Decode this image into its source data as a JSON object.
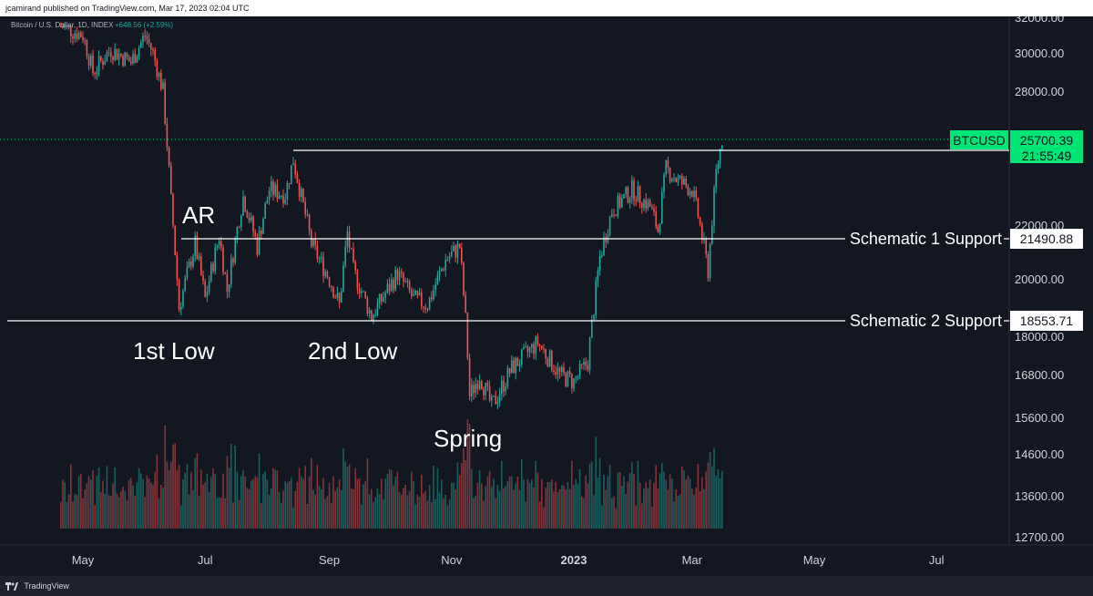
{
  "header": {
    "text": "jcamirand published on TradingView.com, Mar 17, 2023 02:04 UTC"
  },
  "footer": {
    "brand": "TradingView"
  },
  "legend": {
    "symbol": "Bitcoin / U.S. Dollar, 1D, INDEX",
    "change": "+648.56 (+2.59%)"
  },
  "colors": {
    "up": "#26a69a",
    "down": "#ef5350",
    "background": "#131722",
    "accent": "#00e676"
  },
  "chart_data": {
    "type": "candlestick",
    "title": "",
    "y_ticks": [
      32000,
      30000,
      28000,
      22000,
      20000,
      18000,
      16800,
      15600,
      14600,
      13600,
      12700
    ],
    "x_ticks": [
      "May",
      "Jul",
      "Sep",
      "Nov",
      "2023",
      "Mar",
      "May",
      "Jul"
    ],
    "price_line": {
      "label": "BTCUSD",
      "value": "25700.39",
      "countdown": "21:55:49"
    },
    "levels": [
      {
        "name": "",
        "value": 25179.4,
        "value_label": "25179.40"
      },
      {
        "name": "Schematic 1 Support",
        "value": 21490.88,
        "value_label": "21490.88"
      },
      {
        "name": "Schematic 2 Support",
        "value": 18553.71,
        "value_label": "18553.71"
      }
    ],
    "annotations": [
      "AR",
      "1st Low",
      "2nd Low",
      "Spring"
    ],
    "anchors": [
      {
        "date": "2022-04-20",
        "close": 31500
      },
      {
        "date": "2022-05-01",
        "close": 31000
      },
      {
        "date": "2022-05-06",
        "close": 29000
      },
      {
        "date": "2022-05-15",
        "close": 30200
      },
      {
        "date": "2022-05-25",
        "close": 29500
      },
      {
        "date": "2022-06-01",
        "close": 31000
      },
      {
        "date": "2022-06-05",
        "close": 30000
      },
      {
        "date": "2022-06-10",
        "close": 28000
      },
      {
        "date": "2022-06-14",
        "close": 23000
      },
      {
        "date": "2022-06-18",
        "close": 19000
      },
      {
        "date": "2022-06-26",
        "close": 21300
      },
      {
        "date": "2022-07-01",
        "close": 19300
      },
      {
        "date": "2022-07-08",
        "close": 21600
      },
      {
        "date": "2022-07-12",
        "close": 19600
      },
      {
        "date": "2022-07-20",
        "close": 23200
      },
      {
        "date": "2022-07-27",
        "close": 21200
      },
      {
        "date": "2022-08-02",
        "close": 23500
      },
      {
        "date": "2022-08-10",
        "close": 23300
      },
      {
        "date": "2022-08-14",
        "close": 24800
      },
      {
        "date": "2022-08-18",
        "close": 23200
      },
      {
        "date": "2022-08-23",
        "close": 21300
      },
      {
        "date": "2022-09-01",
        "close": 20000
      },
      {
        "date": "2022-09-06",
        "close": 19100
      },
      {
        "date": "2022-09-10",
        "close": 21700
      },
      {
        "date": "2022-09-13",
        "close": 20300
      },
      {
        "date": "2022-09-22",
        "close": 18700
      },
      {
        "date": "2022-10-05",
        "close": 20200
      },
      {
        "date": "2022-10-13",
        "close": 19300
      },
      {
        "date": "2022-10-20",
        "close": 19100
      },
      {
        "date": "2022-10-29",
        "close": 20700
      },
      {
        "date": "2022-11-05",
        "close": 21200
      },
      {
        "date": "2022-11-08",
        "close": 18600
      },
      {
        "date": "2022-11-10",
        "close": 16200
      },
      {
        "date": "2022-11-15",
        "close": 16800
      },
      {
        "date": "2022-11-21",
        "close": 15900
      },
      {
        "date": "2022-12-01",
        "close": 17000
      },
      {
        "date": "2022-12-14",
        "close": 17800
      },
      {
        "date": "2022-12-25",
        "close": 16800
      },
      {
        "date": "2023-01-01",
        "close": 16600
      },
      {
        "date": "2023-01-08",
        "close": 17200
      },
      {
        "date": "2023-01-14",
        "close": 20800
      },
      {
        "date": "2023-01-20",
        "close": 22600
      },
      {
        "date": "2023-01-30",
        "close": 23500
      },
      {
        "date": "2023-02-08",
        "close": 22800
      },
      {
        "date": "2023-02-12",
        "close": 21800
      },
      {
        "date": "2023-02-16",
        "close": 24400
      },
      {
        "date": "2023-02-22",
        "close": 23900
      },
      {
        "date": "2023-03-01",
        "close": 23500
      },
      {
        "date": "2023-03-04",
        "close": 22400
      },
      {
        "date": "2023-03-09",
        "close": 20300
      },
      {
        "date": "2023-03-13",
        "close": 24200
      },
      {
        "date": "2023-03-16",
        "close": 25700
      }
    ]
  }
}
